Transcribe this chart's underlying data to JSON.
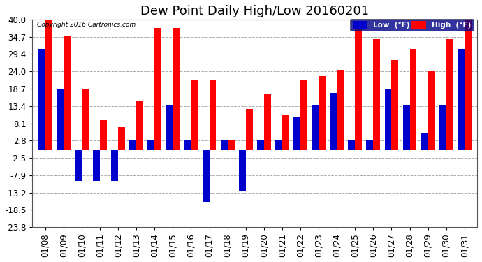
{
  "title": "Dew Point Daily High/Low 20160201",
  "copyright": "Copyright 2016 Cartronics.com",
  "dates": [
    "01/08",
    "01/09",
    "01/10",
    "01/11",
    "01/12",
    "01/13",
    "01/14",
    "01/15",
    "01/16",
    "01/17",
    "01/18",
    "01/19",
    "01/20",
    "01/21",
    "01/22",
    "01/23",
    "01/24",
    "01/25",
    "01/26",
    "01/27",
    "01/28",
    "01/29",
    "01/30",
    "01/31"
  ],
  "high": [
    40.0,
    35.0,
    18.5,
    9.0,
    7.0,
    15.0,
    37.5,
    37.5,
    21.5,
    21.5,
    2.8,
    12.5,
    17.0,
    10.5,
    21.5,
    22.5,
    24.5,
    37.0,
    34.0,
    27.5,
    31.0,
    24.0,
    34.0,
    40.0
  ],
  "low": [
    31.0,
    18.5,
    -9.5,
    -9.5,
    -9.5,
    2.8,
    2.8,
    13.5,
    2.8,
    -16.0,
    2.8,
    -12.5,
    2.8,
    2.8,
    10.0,
    13.5,
    17.5,
    2.8,
    2.8,
    18.5,
    13.5,
    5.0,
    13.5,
    31.0
  ],
  "ylim": [
    -23.8,
    40.0
  ],
  "yticks": [
    40.0,
    34.7,
    29.4,
    24.0,
    18.7,
    13.4,
    8.1,
    2.8,
    -2.5,
    -7.9,
    -13.2,
    -18.5,
    -23.8
  ],
  "bar_width": 0.38,
  "high_color": "#FF0000",
  "low_color": "#0000CC",
  "bg_color": "#FFFFFF",
  "grid_color": "#AAAAAA",
  "title_fontsize": 13,
  "tick_fontsize": 8.5
}
